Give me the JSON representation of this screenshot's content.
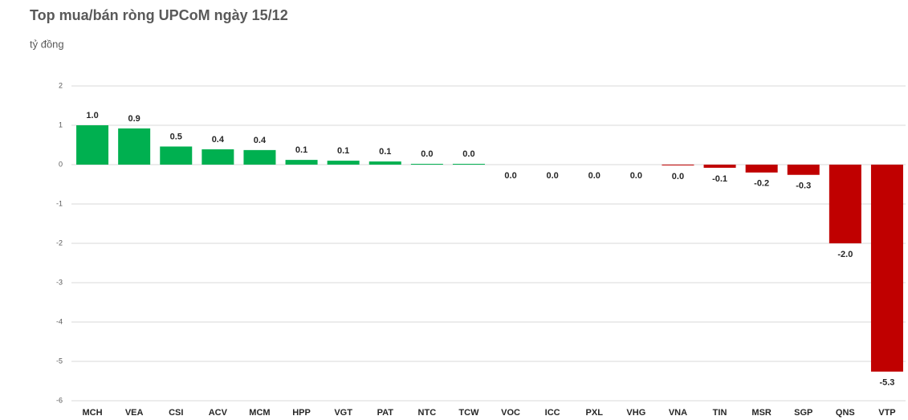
{
  "chart_data": {
    "type": "bar",
    "title": "Top mua/bán ròng UPCoM ngày 15/12",
    "subtitle": "tỷ đồng",
    "categories": [
      "MCH",
      "VEA",
      "CSI",
      "ACV",
      "MCM",
      "HPP",
      "VGT",
      "PAT",
      "NTC",
      "TCW",
      "VOC",
      "ICC",
      "PXL",
      "VHG",
      "VNA",
      "TIN",
      "MSR",
      "SGP",
      "QNS",
      "VTP"
    ],
    "values": [
      1.0,
      0.92,
      0.46,
      0.39,
      0.37,
      0.12,
      0.1,
      0.08,
      0.02,
      0.02,
      0,
      0,
      0,
      0,
      -0.02,
      -0.08,
      -0.2,
      -0.26,
      -2.0,
      -5.26
    ],
    "value_labels": [
      "1.0",
      "0.9",
      "0.5",
      "0.4",
      "0.4",
      "0.1",
      "0.1",
      "0.1",
      "0.0",
      "0.0",
      "0.0",
      "0.0",
      "0.0",
      "0.0",
      "0.0",
      "-0.1",
      "-0.2",
      "-0.3",
      "-2.0",
      "-5.3"
    ],
    "positive_color": "#00b050",
    "negative_color": "#c00000",
    "ylim": [
      -6,
      2
    ],
    "yticks": [
      -6,
      -5,
      -4,
      -3,
      -2,
      -1,
      0,
      1,
      2
    ],
    "grid": true
  }
}
